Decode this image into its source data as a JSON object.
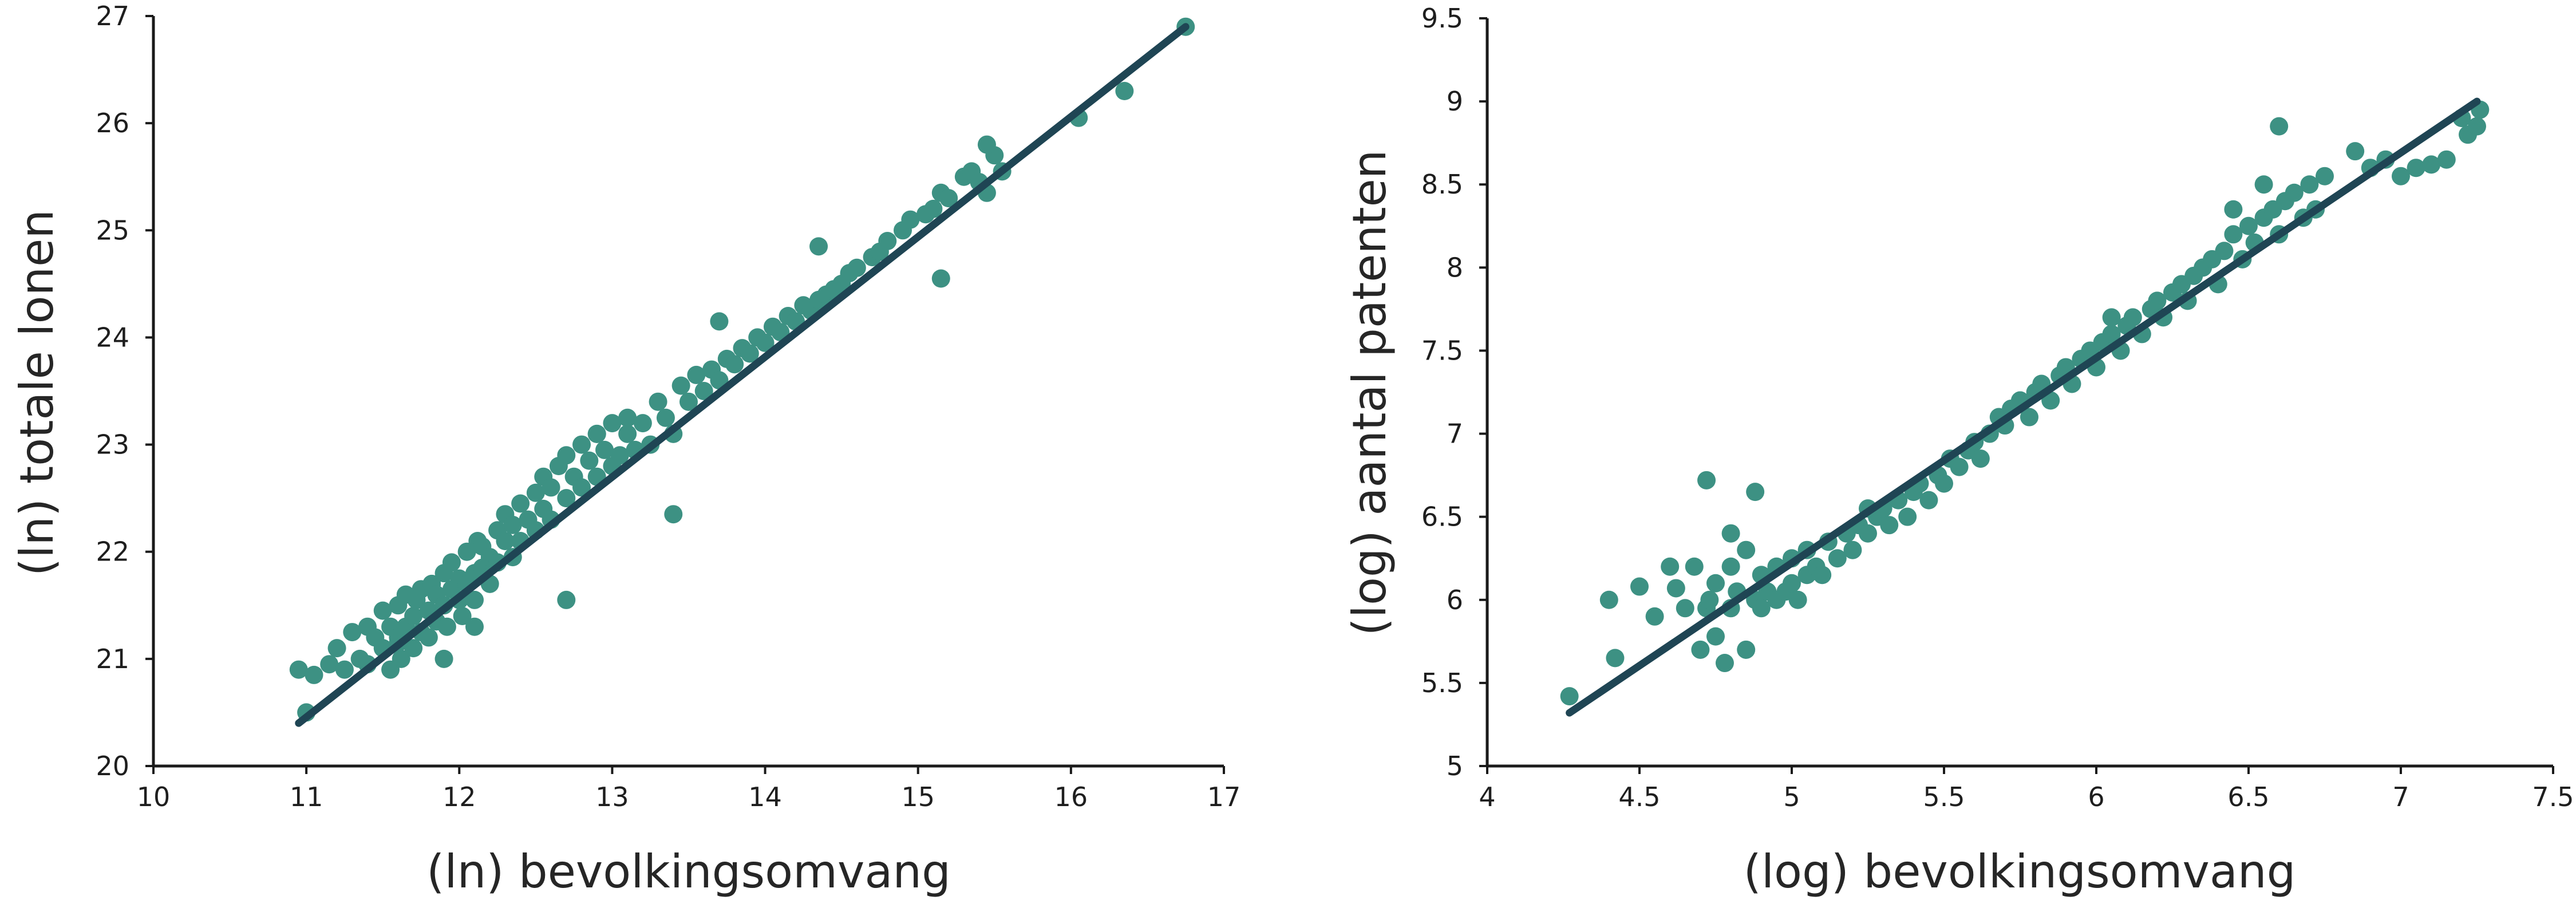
{
  "colors": {
    "point": "#3d9183",
    "fit_line": "#1f4554",
    "axis": "#1a1a1a",
    "text": "#262626"
  },
  "chart_data": [
    {
      "type": "scatter",
      "xlabel": "(ln) bevolkingsomvang",
      "ylabel": "(ln) totale lonen",
      "xlim": [
        10,
        17
      ],
      "ylim": [
        20,
        27
      ],
      "xticks": [
        "10",
        "11",
        "12",
        "13",
        "14",
        "15",
        "16",
        "17"
      ],
      "yticks": [
        "20",
        "21",
        "22",
        "23",
        "24",
        "25",
        "26",
        "27"
      ],
      "grid": false,
      "legend": "none",
      "fit_line": {
        "x": [
          10.95,
          16.75
        ],
        "y": [
          20.4,
          26.9
        ]
      },
      "points": {
        "x": [
          10.95,
          11.0,
          11.15,
          11.2,
          11.25,
          11.3,
          11.35,
          11.4,
          11.4,
          11.45,
          11.5,
          11.5,
          11.55,
          11.55,
          11.6,
          11.6,
          11.62,
          11.65,
          11.65,
          11.7,
          11.7,
          11.72,
          11.75,
          11.75,
          11.8,
          11.8,
          11.82,
          11.85,
          11.85,
          11.9,
          11.9,
          11.92,
          11.95,
          11.95,
          12.0,
          12.0,
          12.02,
          12.05,
          12.05,
          12.1,
          12.1,
          12.12,
          12.15,
          12.15,
          12.2,
          12.2,
          12.25,
          12.25,
          12.3,
          12.3,
          12.35,
          12.35,
          12.4,
          12.4,
          12.45,
          12.5,
          12.5,
          12.55,
          12.55,
          12.6,
          12.6,
          12.65,
          12.7,
          12.7,
          12.75,
          12.8,
          12.8,
          12.85,
          12.9,
          12.9,
          12.95,
          13.0,
          13.0,
          13.05,
          13.1,
          13.1,
          13.15,
          13.2,
          13.25,
          13.3,
          13.35,
          13.4,
          13.45,
          13.5,
          13.55,
          13.6,
          13.65,
          13.7,
          13.75,
          13.8,
          13.85,
          13.9,
          13.95,
          14.0,
          14.05,
          14.1,
          14.15,
          14.2,
          14.25,
          14.3,
          14.35,
          14.4,
          14.45,
          14.5,
          14.55,
          14.6,
          14.7,
          14.75,
          14.8,
          14.9,
          14.95,
          15.05,
          15.1,
          15.15,
          15.2,
          15.3,
          15.35,
          15.4,
          15.45,
          15.5,
          15.55,
          16.05,
          16.35,
          16.75,
          11.05,
          11.6,
          11.9,
          12.1,
          12.7,
          12.9,
          13.4,
          13.7,
          14.35,
          15.15,
          15.45
        ],
        "y": [
          20.9,
          20.5,
          20.95,
          21.1,
          20.9,
          21.25,
          21.0,
          21.3,
          20.95,
          21.2,
          21.45,
          21.1,
          21.3,
          20.9,
          21.5,
          21.2,
          21.0,
          21.6,
          21.3,
          21.4,
          21.1,
          21.55,
          21.25,
          21.65,
          21.45,
          21.2,
          21.7,
          21.35,
          21.6,
          21.5,
          21.8,
          21.3,
          21.65,
          21.9,
          21.55,
          21.75,
          21.4,
          21.7,
          22.0,
          21.8,
          21.55,
          22.1,
          21.85,
          22.05,
          21.7,
          21.95,
          22.2,
          21.9,
          22.1,
          22.35,
          21.95,
          22.25,
          22.45,
          22.1,
          22.3,
          22.55,
          22.2,
          22.7,
          22.4,
          22.6,
          22.3,
          22.8,
          22.5,
          22.9,
          22.7,
          22.6,
          23.0,
          22.85,
          22.7,
          23.1,
          22.95,
          22.8,
          23.2,
          22.9,
          23.1,
          23.25,
          22.95,
          23.2,
          23.0,
          23.4,
          23.25,
          23.1,
          23.55,
          23.4,
          23.65,
          23.5,
          23.7,
          23.6,
          23.8,
          23.75,
          23.9,
          23.85,
          24.0,
          23.95,
          24.1,
          24.05,
          24.2,
          24.15,
          24.3,
          24.25,
          24.35,
          24.4,
          24.45,
          24.5,
          24.6,
          24.65,
          24.75,
          24.8,
          24.9,
          25.0,
          25.1,
          25.15,
          25.2,
          25.35,
          25.3,
          25.5,
          25.55,
          25.45,
          25.35,
          25.7,
          25.55,
          26.05,
          26.3,
          26.9,
          20.85,
          21.15,
          21.0,
          21.3,
          21.55,
          23.1,
          22.35,
          24.15,
          24.85,
          24.55,
          25.8
        ]
      }
    },
    {
      "type": "scatter",
      "xlabel": "(log) bevolkingsomvang",
      "ylabel": "(log) aantal patenten",
      "xlim": [
        4,
        7.5
      ],
      "ylim": [
        5,
        9.5
      ],
      "xticks": [
        "4",
        "4.5",
        "5",
        "5.5",
        "6",
        "6.5",
        "7",
        "7.5"
      ],
      "yticks": [
        "5",
        "5.5",
        "6",
        "6.5",
        "7",
        "7.5",
        "8",
        "8.5",
        "9",
        "9.5"
      ],
      "grid": false,
      "legend": "none",
      "fit_line": {
        "x": [
          4.27,
          7.25
        ],
        "y": [
          5.32,
          9.0
        ]
      },
      "points": {
        "x": [
          4.27,
          4.4,
          4.42,
          4.5,
          4.55,
          4.6,
          4.62,
          4.65,
          4.68,
          4.7,
          4.72,
          4.73,
          4.75,
          4.75,
          4.78,
          4.8,
          4.8,
          4.82,
          4.85,
          4.85,
          4.88,
          4.9,
          4.9,
          4.92,
          4.95,
          4.95,
          4.98,
          5.0,
          5.0,
          5.02,
          5.05,
          5.05,
          5.08,
          5.1,
          5.12,
          5.15,
          5.18,
          5.2,
          5.22,
          5.25,
          5.28,
          5.3,
          5.32,
          5.35,
          5.38,
          5.4,
          5.42,
          5.45,
          5.48,
          5.5,
          5.52,
          5.55,
          5.58,
          5.6,
          5.62,
          5.65,
          5.68,
          5.7,
          5.72,
          5.75,
          5.78,
          5.8,
          5.82,
          5.85,
          5.88,
          5.9,
          5.92,
          5.95,
          5.98,
          6.0,
          6.02,
          6.05,
          6.08,
          6.1,
          6.12,
          6.15,
          6.18,
          6.2,
          6.22,
          6.25,
          6.28,
          6.3,
          6.32,
          6.35,
          6.38,
          6.4,
          6.42,
          6.45,
          6.48,
          6.5,
          6.52,
          6.55,
          6.58,
          6.6,
          6.62,
          6.65,
          6.68,
          6.7,
          6.72,
          6.75,
          6.9,
          6.95,
          7.0,
          7.05,
          7.1,
          7.15,
          7.2,
          7.22,
          7.25,
          7.26,
          4.72,
          4.88,
          6.6,
          4.8,
          5.25,
          5.75,
          6.05,
          6.45,
          6.55,
          6.85
        ],
        "y": [
          5.42,
          6.0,
          5.65,
          6.08,
          5.9,
          6.2,
          6.07,
          5.95,
          6.2,
          5.7,
          5.95,
          6.0,
          5.78,
          6.1,
          5.62,
          5.95,
          6.2,
          6.05,
          5.7,
          6.3,
          6.0,
          5.95,
          6.15,
          6.05,
          6.0,
          6.2,
          6.05,
          6.1,
          6.25,
          6.0,
          6.15,
          6.3,
          6.2,
          6.15,
          6.35,
          6.25,
          6.4,
          6.3,
          6.45,
          6.4,
          6.5,
          6.55,
          6.45,
          6.6,
          6.5,
          6.65,
          6.7,
          6.6,
          6.75,
          6.7,
          6.85,
          6.8,
          6.9,
          6.95,
          6.85,
          7.0,
          7.1,
          7.05,
          7.15,
          7.2,
          7.1,
          7.25,
          7.3,
          7.2,
          7.35,
          7.4,
          7.3,
          7.45,
          7.5,
          7.4,
          7.55,
          7.6,
          7.5,
          7.65,
          7.7,
          7.6,
          7.75,
          7.8,
          7.7,
          7.85,
          7.9,
          7.8,
          7.95,
          8.0,
          8.05,
          7.9,
          8.1,
          8.2,
          8.05,
          8.25,
          8.15,
          8.3,
          8.35,
          8.2,
          8.4,
          8.45,
          8.3,
          8.5,
          8.35,
          8.55,
          8.6,
          8.65,
          8.55,
          8.6,
          8.62,
          8.65,
          8.9,
          8.8,
          8.85,
          8.95,
          6.72,
          6.65,
          8.85,
          6.4,
          6.55,
          7.2,
          7.7,
          8.35,
          8.5,
          8.7
        ]
      }
    }
  ]
}
